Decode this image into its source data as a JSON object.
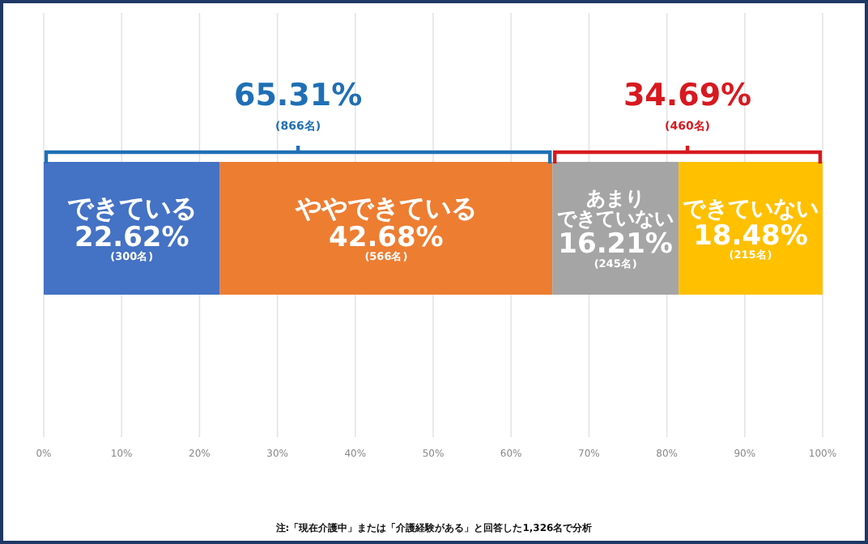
{
  "chart_data": {
    "type": "bar",
    "orientation": "horizontal",
    "stacked": true,
    "categories": [
      null
    ],
    "series": [
      {
        "name": "できている",
        "color": "#4472c4",
        "values": [
          22.62
        ],
        "value_labels": [
          "22.62%\n(300名)"
        ]
      },
      {
        "name": "ややできている",
        "color": "#ed7d31",
        "values": [
          42.68
        ],
        "value_labels": [
          "42.68%\n(566名)"
        ]
      },
      {
        "name": "あまりできていない",
        "color": "#a5a5a5",
        "values": [
          16.21
        ],
        "value_labels": [
          "16.21%\n(245名)"
        ]
      },
      {
        "name": "できていない",
        "color": "#ffc000",
        "values": [
          18.48
        ],
        "value_labels": [
          "18.48%\n(215名)"
        ]
      }
    ],
    "xlim": [
      0,
      100
    ],
    "xticks": [
      {
        "value": 0,
        "label": "0%"
      },
      {
        "value": 10,
        "label": "10%"
      },
      {
        "value": 20,
        "label": "20%"
      },
      {
        "value": 30,
        "label": "30%"
      },
      {
        "value": 40,
        "label": "40%"
      },
      {
        "value": 50,
        "label": "50%"
      },
      {
        "value": 60,
        "label": "60%"
      },
      {
        "value": 70,
        "label": "70%"
      },
      {
        "value": 80,
        "label": "80%"
      },
      {
        "value": 90,
        "label": "90%"
      },
      {
        "value": 100,
        "label": "100%"
      }
    ],
    "grid": "x",
    "annotations": [
      "65.31%\n(866名)",
      "34.69%\n(460名)",
      "注:「現在介護中」または「介護経験がある」と回答した1,326名で分析"
    ]
  }
}
